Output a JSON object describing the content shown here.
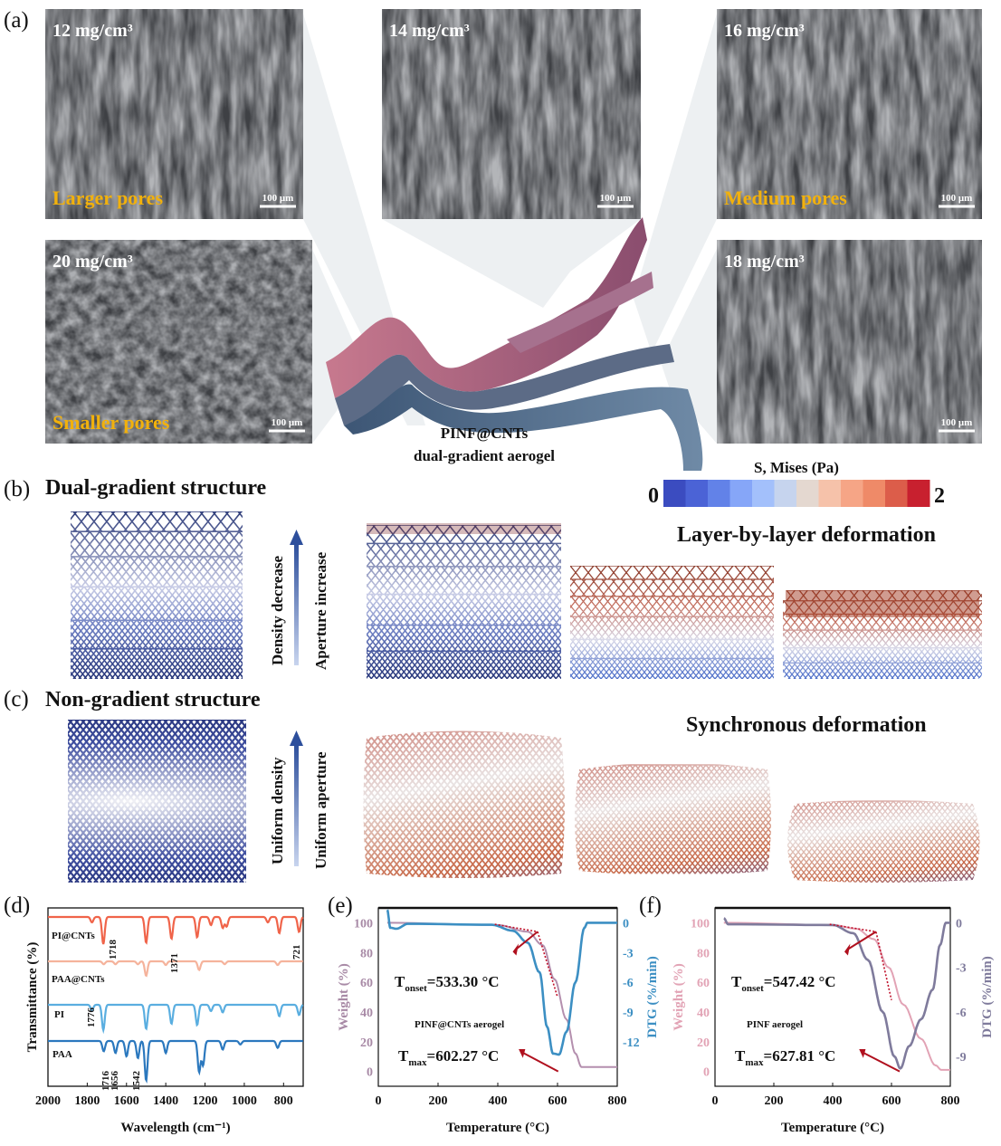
{
  "panels": {
    "a": {
      "label": "(a)",
      "images": [
        {
          "density": "12 mg/cm³",
          "note": "Larger pores",
          "scale": "100 μm"
        },
        {
          "density": "14 mg/cm³",
          "note": "",
          "scale": "100 μm"
        },
        {
          "density": "16 mg/cm³",
          "note": "Medium pores",
          "scale": "100 μm"
        },
        {
          "density": "20 mg/cm³",
          "note": "Smaller pores",
          "scale": "100 μm"
        },
        {
          "density": "18 mg/cm³",
          "note": "",
          "scale": "100 μm"
        }
      ],
      "caption_line1": "PINF@CNTs",
      "caption_line2": "dual-gradient aerogel"
    },
    "b": {
      "label": "(b)",
      "title": "Dual-gradient structure",
      "arrow1": "Density decrease",
      "arrow2": "Aperture increase",
      "deformation": "Layer-by-layer deformation"
    },
    "c": {
      "label": "(c)",
      "title": "Non-gradient structure",
      "arrow1": "Uniform density",
      "arrow2": "Uniform aperture",
      "deformation": "Synchronous deformation"
    },
    "colorbar": {
      "title": "S, Mises (Pa)",
      "min": "0",
      "max": "2",
      "colors": [
        "#3b4cc0",
        "#4b63d6",
        "#6282e8",
        "#86a6f8",
        "#a3c0fb",
        "#c6d4ee",
        "#e4d8d0",
        "#f6c2aa",
        "#f6a586",
        "#ef8a68",
        "#dc5d4a",
        "#c8202f"
      ]
    }
  },
  "chart_data": [
    {
      "panel": "(d)",
      "type": "line",
      "xlabel": "Wavelength (cm⁻¹)",
      "ylabel": "Transmittance (%)",
      "xlim": [
        2000,
        700
      ],
      "xticks": [
        "2000",
        "1800",
        "1600",
        "1400",
        "1200",
        "1000",
        "800"
      ],
      "series": [
        {
          "name": "PI@CNTs",
          "color": "#f0644a",
          "dips": [
            [
              1776,
              0.2
            ],
            [
              1718,
              1.0
            ],
            [
              1500,
              0.95
            ],
            [
              1371,
              0.8
            ],
            [
              1240,
              0.75
            ],
            [
              1170,
              0.3
            ],
            [
              1110,
              0.4
            ],
            [
              1090,
              0.35
            ],
            [
              880,
              0.2
            ],
            [
              822,
              0.6
            ],
            [
              721,
              0.55
            ]
          ]
        },
        {
          "name": "PAA@CNTs",
          "color": "#f5b39c",
          "dips": [
            [
              1716,
              0.2
            ],
            [
              1656,
              0.2
            ],
            [
              1542,
              0.2
            ],
            [
              1500,
              1.0
            ],
            [
              1400,
              0.25
            ],
            [
              1230,
              0.6
            ],
            [
              1100,
              0.2
            ],
            [
              830,
              0.25
            ]
          ]
        },
        {
          "name": "PI",
          "color": "#5aaee0",
          "dips": [
            [
              1776,
              0.2
            ],
            [
              1718,
              1.0
            ],
            [
              1500,
              0.95
            ],
            [
              1371,
              0.75
            ],
            [
              1240,
              0.8
            ],
            [
              1170,
              0.25
            ],
            [
              1110,
              0.3
            ],
            [
              822,
              0.45
            ],
            [
              721,
              0.4
            ]
          ]
        },
        {
          "name": "PAA",
          "color": "#2b78be",
          "dips": [
            [
              1716,
              0.3
            ],
            [
              1656,
              0.35
            ],
            [
              1600,
              0.45
            ],
            [
              1542,
              0.5
            ],
            [
              1500,
              1.15
            ],
            [
              1400,
              0.35
            ],
            [
              1230,
              0.9
            ],
            [
              1210,
              0.7
            ],
            [
              1110,
              0.25
            ],
            [
              1020,
              0.1
            ],
            [
              830,
              0.2
            ]
          ]
        }
      ],
      "annotations": [
        "1718",
        "1371",
        "721",
        "1776",
        "1716",
        "1656",
        "1542"
      ]
    },
    {
      "panel": "(e)",
      "type": "line",
      "xlabel": "Temperature (°C)",
      "ylabel": "Weight (%)",
      "y2label": "DTG (%/min)",
      "xlim": [
        0,
        800
      ],
      "ylim": [
        -10,
        110
      ],
      "y2lim": [
        -16.5,
        1.5
      ],
      "xticks": [
        "0",
        "200",
        "400",
        "600",
        "800"
      ],
      "yticks": [
        "0",
        "20",
        "40",
        "60",
        "80",
        "100"
      ],
      "y2ticks": [
        "0",
        "-3",
        "-6",
        "-9",
        "-12"
      ],
      "series": [
        {
          "name": "TG",
          "axis": "left",
          "color": "#b48fae",
          "points": [
            [
              30,
              100
            ],
            [
              400,
              98.5
            ],
            [
              500,
              94
            ],
            [
              550,
              85
            ],
            [
              590,
              62
            ],
            [
              630,
              35
            ],
            [
              660,
              12
            ],
            [
              680,
              3
            ],
            [
              800,
              3
            ]
          ]
        },
        {
          "name": "DTG",
          "axis": "right",
          "color": "#3c8fc3",
          "points": [
            [
              30,
              1.3
            ],
            [
              40,
              -0.5
            ],
            [
              60,
              -0.6
            ],
            [
              100,
              -0.1
            ],
            [
              380,
              -0.2
            ],
            [
              450,
              -0.8
            ],
            [
              500,
              -2
            ],
            [
              540,
              -5
            ],
            [
              565,
              -10.5
            ],
            [
              585,
              -13.2
            ],
            [
              605,
              -13.3
            ],
            [
              630,
              -11
            ],
            [
              660,
              -6
            ],
            [
              690,
              -0.5
            ],
            [
              700,
              0
            ],
            [
              800,
              0
            ]
          ]
        }
      ],
      "onset": {
        "sym": "T",
        "sub": "onset",
        "val": "=533.30 °C"
      },
      "max": {
        "sym": "T",
        "sub": "max",
        "val": "=602.27 °C"
      },
      "sample": "PINF@CNTs aerogel"
    },
    {
      "panel": "(f)",
      "type": "line",
      "xlabel": "Temperature (°C)",
      "ylabel": "Weight (%)",
      "y2label": "DTG (%/min)",
      "xlim": [
        0,
        800
      ],
      "ylim": [
        -10,
        110
      ],
      "y2lim": [
        -11,
        1
      ],
      "xticks": [
        "0",
        "200",
        "400",
        "600",
        "800"
      ],
      "yticks": [
        "0",
        "20",
        "40",
        "60",
        "80",
        "100"
      ],
      "y2ticks": [
        "0",
        "-3",
        "-6",
        "-9"
      ],
      "series": [
        {
          "name": "TG",
          "axis": "left",
          "color": "#e2a3b5",
          "points": [
            [
              30,
              100
            ],
            [
              400,
              98.5
            ],
            [
              480,
              96
            ],
            [
              540,
              89
            ],
            [
              590,
              70
            ],
            [
              640,
              45
            ],
            [
              700,
              22
            ],
            [
              750,
              4
            ],
            [
              770,
              1
            ],
            [
              800,
              1
            ]
          ]
        },
        {
          "name": "DTG",
          "axis": "right",
          "color": "#7f7b9c",
          "points": [
            [
              30,
              0.3
            ],
            [
              45,
              -0.1
            ],
            [
              400,
              -0.15
            ],
            [
              470,
              -0.7
            ],
            [
              520,
              -2.5
            ],
            [
              570,
              -6
            ],
            [
              610,
              -9
            ],
            [
              630,
              -9.8
            ],
            [
              660,
              -8.3
            ],
            [
              700,
              -6.5
            ],
            [
              740,
              -4.5
            ],
            [
              765,
              -1.5
            ],
            [
              785,
              0
            ],
            [
              800,
              0
            ]
          ]
        }
      ],
      "onset": {
        "sym": "T",
        "sub": "onset",
        "val": "=547.42 °C"
      },
      "max": {
        "sym": "T",
        "sub": "max",
        "val": "=627.81 °C"
      },
      "sample": "PINF aerogel"
    }
  ]
}
